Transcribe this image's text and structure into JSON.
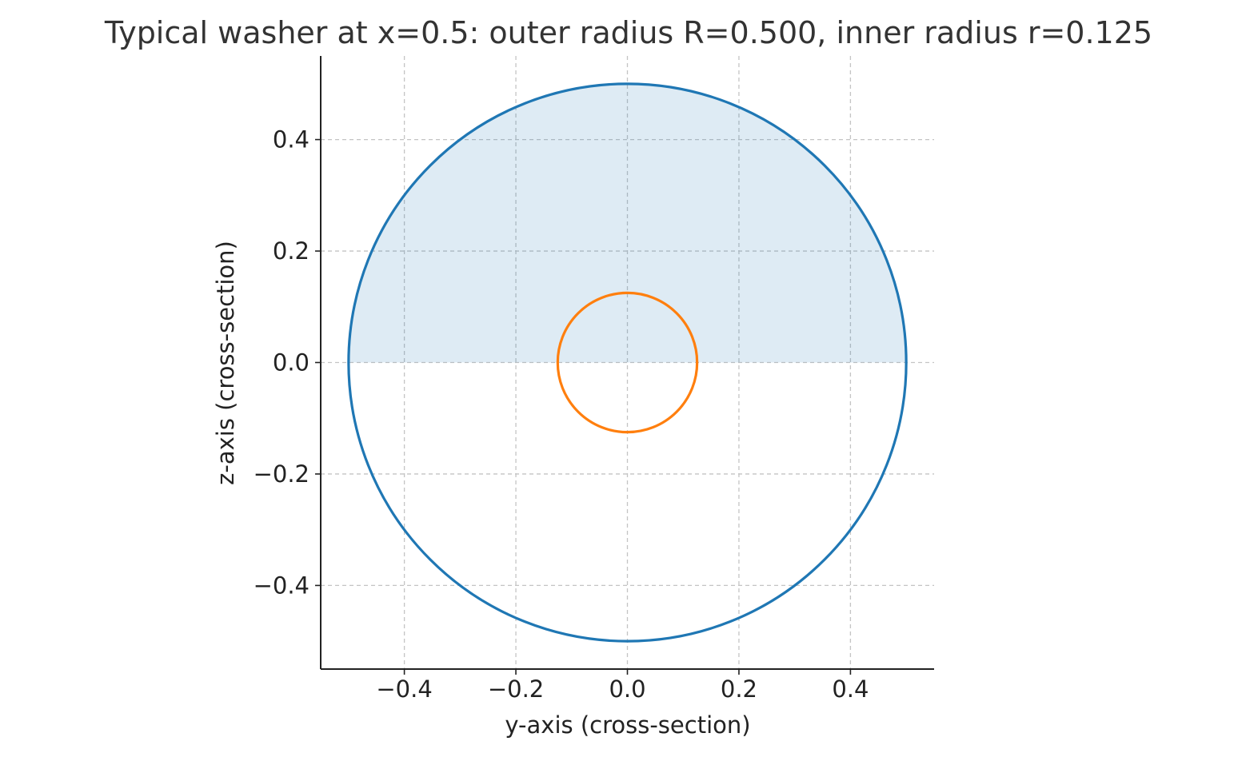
{
  "chart_data": {
    "type": "line",
    "title": "Typical washer at x=0.5: outer radius R=0.500, inner radius r=0.125",
    "xlabel": "y-axis (cross-section)",
    "ylabel": "z-axis (cross-section)",
    "xlim": [
      -0.55,
      0.55
    ],
    "ylim": [
      -0.55,
      0.55
    ],
    "x_ticks": [
      -0.4,
      -0.2,
      0.0,
      0.2,
      0.4
    ],
    "y_ticks": [
      -0.4,
      -0.2,
      0.0,
      0.2,
      0.4
    ],
    "x_tick_labels": [
      "−0.4",
      "−0.2",
      "0.0",
      "0.2",
      "0.4"
    ],
    "y_tick_labels": [
      "−0.4",
      "−0.2",
      "0.0",
      "0.2",
      "0.4"
    ],
    "grid": true,
    "aspect": "equal",
    "series": [
      {
        "center": [
          0,
          0
        ],
        "radius": 0.5,
        "color": "#1f77b4"
      },
      {
        "center": [
          0,
          0
        ],
        "radius": 0.125,
        "color": "#ff7f0e"
      }
    ],
    "fill_region": {
      "description_values": {
        "y_from": -0.5,
        "y_to": 0.5,
        "z_from": 0,
        "z_to_outer_radius": 0.5
      },
      "color": "#1f77b4",
      "opacity": 0.15
    }
  }
}
